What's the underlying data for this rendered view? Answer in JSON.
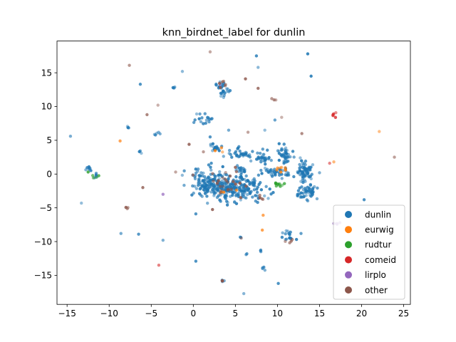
{
  "chart_data": {
    "type": "scatter",
    "title": "knn_birdnet_label for dunlin",
    "xlim": [
      -16.2,
      25.8
    ],
    "ylim": [
      -19.3,
      19.7
    ],
    "xticks": [
      -15,
      -10,
      -5,
      0,
      5,
      10,
      15,
      20,
      25
    ],
    "yticks": [
      -15,
      -10,
      -5,
      0,
      5,
      10,
      15
    ],
    "grid": false,
    "legend_position": "lower-right",
    "series": [
      {
        "name": "dunlin",
        "color": "#1f77b4",
        "clusters": [
          {
            "cx": 4.5,
            "cy": -2.0,
            "sx": 1.8,
            "sy": 1.0,
            "n": 230
          },
          {
            "cx": 1.8,
            "cy": -1.0,
            "sx": 1.0,
            "sy": 1.0,
            "n": 90
          },
          {
            "cx": 13.2,
            "cy": 0.3,
            "sx": 0.5,
            "sy": 0.6,
            "n": 70
          },
          {
            "cx": 13.6,
            "cy": -2.6,
            "sx": 0.7,
            "sy": 0.5,
            "n": 50
          },
          {
            "cx": 10.7,
            "cy": 2.8,
            "sx": 0.4,
            "sy": 0.8,
            "n": 40
          },
          {
            "cx": 9.8,
            "cy": 0.3,
            "sx": 0.8,
            "sy": 0.4,
            "n": 40
          },
          {
            "cx": 6.0,
            "cy": 2.9,
            "sx": 0.9,
            "sy": 0.4,
            "n": 40
          },
          {
            "cx": 8.2,
            "cy": 2.3,
            "sx": 0.5,
            "sy": 0.3,
            "n": 22
          },
          {
            "cx": 3.5,
            "cy": 12.6,
            "sx": 0.5,
            "sy": 0.6,
            "n": 30
          },
          {
            "cx": 1.3,
            "cy": 8.1,
            "sx": 0.5,
            "sy": 0.4,
            "n": 18
          },
          {
            "cx": 2.4,
            "cy": 3.9,
            "sx": 0.5,
            "sy": 0.3,
            "n": 16
          },
          {
            "cx": 11.1,
            "cy": -9.0,
            "sx": 0.5,
            "sy": 0.5,
            "n": 16
          },
          {
            "cx": 5.6,
            "cy": 0.5,
            "sx": 0.4,
            "sy": 0.5,
            "n": 14
          },
          {
            "cx": 7.0,
            "cy": -1.5,
            "sx": 0.8,
            "sy": 0.8,
            "n": 16
          },
          {
            "cx": -12.4,
            "cy": 0.6,
            "sx": 0.2,
            "sy": 0.3,
            "n": 7
          },
          {
            "cx": -11.4,
            "cy": -0.2,
            "sx": 0.3,
            "sy": 0.2,
            "n": 5
          },
          {
            "cx": -2.2,
            "cy": 12.8,
            "sx": 0.2,
            "sy": 0.1,
            "n": 4
          },
          {
            "cx": -4.3,
            "cy": 6.0,
            "sx": 0.2,
            "sy": 0.3,
            "n": 5
          },
          {
            "cx": -7.7,
            "cy": 6.9,
            "sx": 0.1,
            "sy": 0.1,
            "n": 3
          },
          {
            "cx": -6.2,
            "cy": 3.5,
            "sx": 0.1,
            "sy": 0.3,
            "n": 3
          },
          {
            "cx": 3.3,
            "cy": -15.8,
            "sx": 0.2,
            "sy": 0.1,
            "n": 3
          },
          {
            "cx": 8.0,
            "cy": -11.5,
            "sx": 0.1,
            "sy": 0.2,
            "n": 3
          },
          {
            "cx": 8.3,
            "cy": -14.0,
            "sx": 0.2,
            "sy": 0.3,
            "n": 4
          },
          {
            "cx": 6.5,
            "cy": -11.8,
            "sx": 0.1,
            "sy": 0.1,
            "n": 2
          },
          {
            "cx": 5.5,
            "cy": -9.3,
            "sx": 0.1,
            "sy": 0.1,
            "n": 2
          }
        ],
        "points": [
          [
            -14.6,
            5.6
          ],
          [
            -13.3,
            -4.3
          ],
          [
            -8.6,
            -8.8
          ],
          [
            -6.5,
            -8.9
          ],
          [
            -6.3,
            13.3
          ],
          [
            -3.6,
            -9.8
          ],
          [
            -1.3,
            15.2
          ],
          [
            0.3,
            -5.9
          ],
          [
            0.4,
            8.9
          ],
          [
            0.3,
            -12.9
          ],
          [
            7.5,
            17.5
          ],
          [
            8.5,
            6.5
          ],
          [
            10.1,
            -16.2
          ],
          [
            12.8,
            -8.8
          ],
          [
            13.6,
            17.8
          ],
          [
            14.0,
            14.5
          ],
          [
            20.3,
            -3.8
          ],
          [
            7.7,
            15.8
          ],
          [
            4.2,
            6.5
          ],
          [
            2.0,
            5.5
          ],
          [
            9.7,
            8.0
          ],
          [
            6.0,
            -17.7
          ],
          [
            10.2,
            4.5
          ],
          [
            15.0,
            0.2
          ]
        ]
      },
      {
        "name": "eurwig",
        "color": "#ff7f0e",
        "clusters": [
          {
            "cx": 10.3,
            "cy": 0.7,
            "sx": 0.5,
            "sy": 0.3,
            "n": 8
          },
          {
            "cx": 2.8,
            "cy": 3.7,
            "sx": 0.4,
            "sy": 0.3,
            "n": 3
          },
          {
            "cx": 3.5,
            "cy": -2.0,
            "sx": 0.8,
            "sy": 0.4,
            "n": 3
          }
        ],
        "points": [
          [
            22.1,
            6.3
          ],
          [
            -8.7,
            4.9
          ],
          [
            16.7,
            1.8
          ],
          [
            8.3,
            -6.1
          ],
          [
            8.2,
            -8.3
          ]
        ]
      },
      {
        "name": "rudtur",
        "color": "#2ca02c",
        "clusters": [
          {
            "cx": 10.3,
            "cy": -1.5,
            "sx": 0.4,
            "sy": 0.2,
            "n": 10
          },
          {
            "cx": -11.9,
            "cy": -0.2,
            "sx": 0.3,
            "sy": 0.2,
            "n": 4
          }
        ],
        "points": [
          [
            -12.5,
            0.3
          ]
        ]
      },
      {
        "name": "comeid",
        "color": "#d62728",
        "clusters": [
          {
            "cx": 16.7,
            "cy": 8.9,
            "sx": 0.2,
            "sy": 0.2,
            "n": 5
          }
        ],
        "points": [
          [
            16.2,
            1.6
          ],
          [
            -4.1,
            -13.5
          ]
        ]
      },
      {
        "name": "lirplo",
        "color": "#9467bd",
        "clusters": [
          {
            "cx": 16.9,
            "cy": -7.3,
            "sx": 0.3,
            "sy": 0.1,
            "n": 4
          }
        ],
        "points": [
          [
            -3.6,
            -3.0
          ],
          [
            3.2,
            13.2
          ]
        ]
      },
      {
        "name": "other",
        "color": "#8c564b",
        "clusters": [
          {
            "cx": 3.5,
            "cy": -1.5,
            "sx": 1.5,
            "sy": 1.2,
            "n": 25
          },
          {
            "cx": 3.6,
            "cy": 13.5,
            "sx": 0.5,
            "sy": 0.3,
            "n": 6
          },
          {
            "cx": 9.6,
            "cy": 11.0,
            "sx": 0.2,
            "sy": 0.2,
            "n": 3
          },
          {
            "cx": 8.0,
            "cy": -3.5,
            "sx": 0.2,
            "sy": 0.3,
            "n": 4
          },
          {
            "cx": 11.3,
            "cy": -10.0,
            "sx": 0.3,
            "sy": 0.3,
            "n": 4
          },
          {
            "cx": 3.3,
            "cy": -15.8,
            "sx": 0.2,
            "sy": 0.1,
            "n": 3
          },
          {
            "cx": -7.9,
            "cy": -5.0,
            "sx": 0.1,
            "sy": 0.1,
            "n": 3
          }
        ],
        "points": [
          [
            2.0,
            18.1
          ],
          [
            -7.6,
            16.1
          ],
          [
            -5.5,
            8.8
          ],
          [
            6.2,
            14.1
          ],
          [
            7.7,
            12.7
          ],
          [
            6.5,
            6.2
          ],
          [
            -0.5,
            4.4
          ],
          [
            12.9,
            6.0
          ],
          [
            23.9,
            2.5
          ],
          [
            -2.1,
            0.3
          ],
          [
            5.7,
            -9.5
          ],
          [
            1.2,
            3.3
          ],
          [
            10.5,
            8.4
          ],
          [
            -6.0,
            -2.0
          ],
          [
            -4.2,
            10.2
          ],
          [
            5.0,
            1.0
          ]
        ]
      }
    ]
  }
}
